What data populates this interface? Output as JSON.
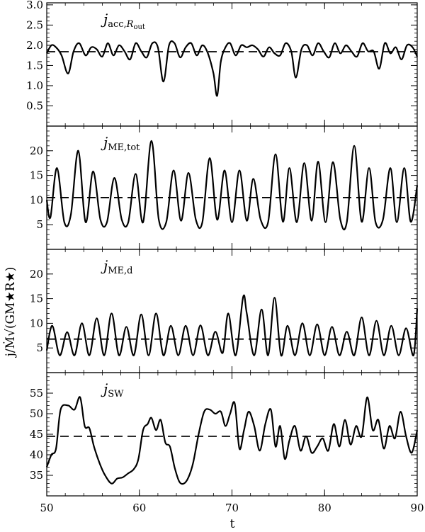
{
  "chart_data": {
    "type": "line",
    "xlabel": "t",
    "ylabel": "j/Ṁ√(GM★R★)",
    "xlim": [
      50,
      90
    ],
    "xticks": [
      50,
      60,
      70,
      80,
      90
    ],
    "panels": [
      {
        "label_main": "j",
        "label_sub": "acc,",
        "label_sub_italic": "R",
        "label_subsub": "out",
        "ylim": [
          0,
          3.05
        ],
        "yticks": [
          0.5,
          1.0,
          1.5,
          2.0,
          2.5,
          3.0
        ],
        "ytick_labels": [
          "0.5",
          "1.0",
          "1.5",
          "2.0",
          "2.5",
          "3.0"
        ],
        "mean": 1.84,
        "series": [
          {
            "x": [
              50,
              50.5,
              51,
              51.6,
              52.3,
              52.9,
              53.5,
              54.2,
              54.8,
              55.4,
              56,
              56.6,
              57.2,
              57.8,
              58.4,
              59,
              59.6,
              60.2,
              60.8,
              61.4,
              62,
              62.6,
              63.2,
              63.8,
              64.4,
              65,
              65.6,
              66.2,
              66.8,
              67.4,
              68,
              68.4,
              68.8,
              69.3,
              69.8,
              70.4,
              71,
              71.6,
              72.2,
              72.8,
              73.4,
              74,
              74.6,
              75.2,
              75.8,
              76.4,
              76.9,
              77.5,
              78.1,
              78.7,
              79.3,
              79.9,
              80.5,
              81.1,
              81.7,
              82.3,
              82.9,
              83.5,
              84.1,
              84.7,
              85.3,
              85.9,
              86.5,
              87.1,
              87.7,
              88.3,
              88.9,
              89.5,
              90
            ],
            "y": [
              1.8,
              2.0,
              1.95,
              1.75,
              1.3,
              1.85,
              2.05,
              1.75,
              1.95,
              1.9,
              1.72,
              2.05,
              1.75,
              2.0,
              1.85,
              1.65,
              2.05,
              1.85,
              1.7,
              2.05,
              1.95,
              1.1,
              2.0,
              2.05,
              1.7,
              1.95,
              2.05,
              1.75,
              2.0,
              1.8,
              1.3,
              0.75,
              1.6,
              1.95,
              2.05,
              1.75,
              2.0,
              1.95,
              2.0,
              1.9,
              1.72,
              1.95,
              1.8,
              1.75,
              2.05,
              1.85,
              1.2,
              1.9,
              2.0,
              1.75,
              2.05,
              1.85,
              1.7,
              2.05,
              1.8,
              2.0,
              1.85,
              1.72,
              2.05,
              1.85,
              1.85,
              1.42,
              2.05,
              1.8,
              1.95,
              1.65,
              2.0,
              1.95,
              1.72
            ]
          }
        ]
      },
      {
        "label_main": "j",
        "label_sub": "ME,tot",
        "label_sub_italic": "",
        "label_subsub": "",
        "ylim": [
          0,
          25
        ],
        "yticks": [
          5,
          10,
          15,
          20
        ],
        "ytick_labels": [
          "5",
          "10",
          "15",
          "20"
        ],
        "mean": 10.5,
        "series": [
          {
            "x": [
              50,
              50.4,
              51.1,
              51.9,
              52.6,
              53.4,
              54.2,
              55.0,
              55.8,
              56.5,
              57.3,
              58.1,
              58.8,
              59.6,
              60.4,
              61.3,
              62.1,
              62.9,
              63.7,
              64.5,
              65.3,
              66.1,
              66.8,
              67.6,
              68.4,
              69.2,
              70.0,
              70.8,
              71.6,
              72.3,
              73.1,
              73.9,
              74.7,
              75.5,
              76.2,
              77.0,
              77.8,
              78.6,
              79.3,
              80.1,
              80.9,
              81.7,
              82.4,
              83.2,
              84.0,
              84.8,
              85.5,
              86.3,
              87.1,
              87.8,
              88.6,
              89.3,
              90
            ],
            "y": [
              10,
              6.5,
              16.5,
              5.5,
              7,
              20,
              5.5,
              15.8,
              6,
              5.5,
              14.5,
              6,
              5.5,
              15.3,
              5.5,
              22,
              6,
              5.5,
              16,
              5.8,
              15.5,
              6,
              5.5,
              18.5,
              6,
              16,
              5.5,
              16,
              5.8,
              14.3,
              6,
              5.5,
              19.3,
              5.6,
              16.5,
              5.5,
              17.5,
              5.8,
              17.8,
              5.5,
              17.7,
              6,
              5.5,
              21,
              5.6,
              16.5,
              5.5,
              6,
              16.5,
              5.5,
              16.5,
              5.6,
              13
            ]
          }
        ]
      },
      {
        "label_main": "j",
        "label_sub": "ME,d",
        "label_sub_italic": "",
        "label_subsub": "",
        "ylim": [
          0,
          25
        ],
        "yticks": [
          5,
          10,
          15,
          20
        ],
        "ytick_labels": [
          "5",
          "10",
          "15",
          "20"
        ],
        "mean": 6.8,
        "series": [
          {
            "x": [
              50,
              50.6,
              51.4,
              52.2,
              53,
              53.8,
              54.6,
              55.4,
              56.2,
              57,
              57.8,
              58.6,
              59.4,
              60.2,
              61,
              61.8,
              62.6,
              63.4,
              64.2,
              65,
              65.8,
              66.6,
              67.4,
              68.2,
              69,
              69.6,
              70.4,
              71.2,
              71.6,
              72.4,
              73.2,
              73.9,
              74.6,
              75.3,
              76,
              76.8,
              77.6,
              78.4,
              79.2,
              80,
              80.8,
              81.6,
              82.4,
              83.2,
              84,
              84.8,
              85.6,
              86.4,
              87.2,
              88,
              88.8,
              89.6,
              90
            ],
            "y": [
              4.5,
              9.5,
              3.5,
              8.2,
              3.5,
              10,
              3.5,
              11,
              3.5,
              12,
              3.5,
              9.3,
              3.5,
              11.8,
              3.5,
              12,
              3.5,
              9.5,
              3.5,
              9.5,
              3.5,
              9.6,
              3.5,
              8.3,
              4,
              12,
              3.5,
              15.3,
              12,
              3.5,
              12.8,
              3.5,
              15.2,
              3.5,
              9.5,
              3.5,
              10,
              3.5,
              9.8,
              3.5,
              9.3,
              3.5,
              8.3,
              3.5,
              11.2,
              3.5,
              10.5,
              3.5,
              9.5,
              3.5,
              9,
              3.5,
              13
            ]
          }
        ]
      },
      {
        "label_main": "j",
        "label_sub": "SW",
        "label_sub_italic": "",
        "label_subsub": "",
        "ylim": [
          30,
          60
        ],
        "yticks": [
          35,
          40,
          45,
          50,
          55
        ],
        "ytick_labels": [
          "35",
          "40",
          "45",
          "50",
          "55"
        ],
        "mean": 44.5,
        "series": [
          {
            "x": [
              50,
              50.5,
              51,
              51.5,
              52.3,
              53,
              53.6,
              54.1,
              54.6,
              55.1,
              55.7,
              56.3,
              57,
              57.6,
              58.2,
              58.8,
              59.4,
              59.9,
              60.4,
              60.9,
              61.3,
              61.8,
              62.3,
              62.8,
              63.3,
              63.8,
              64.3,
              64.8,
              65.3,
              65.8,
              66.4,
              67,
              67.6,
              68.2,
              68.8,
              69.3,
              69.8,
              70.3,
              70.8,
              71.3,
              71.8,
              72.4,
              73,
              73.6,
              74.2,
              74.7,
              75.2,
              75.7,
              76.2,
              76.8,
              77.4,
              78,
              78.6,
              79.2,
              79.8,
              80.4,
              81,
              81.6,
              82.2,
              82.8,
              83.4,
              84,
              84.6,
              85.2,
              85.8,
              86.4,
              87,
              87.6,
              88.2,
              88.8,
              89.4,
              90
            ],
            "y": [
              37,
              40,
              41.5,
              51,
              52,
              51,
              54,
              47,
              46.5,
              42,
              38,
              35,
              33,
              34.2,
              34.5,
              35.5,
              36.5,
              39,
              46,
              47.5,
              49,
              46,
              48.5,
              43,
              42,
              37,
              33.5,
              33,
              34.5,
              38,
              45,
              50.5,
              51,
              50,
              50.5,
              47,
              50,
              52.5,
              41.5,
              46,
              50.5,
              47,
              41,
              47.5,
              51,
              42,
              47,
              39,
              43.5,
              47,
              41,
              44.5,
              40.5,
              42,
              44,
              41,
              47.5,
              42,
              48.5,
              42.5,
              47,
              44.5,
              54,
              46,
              48.5,
              41.5,
              47,
              44,
              50.5,
              44.5,
              40.5,
              46
            ]
          }
        ]
      }
    ]
  }
}
